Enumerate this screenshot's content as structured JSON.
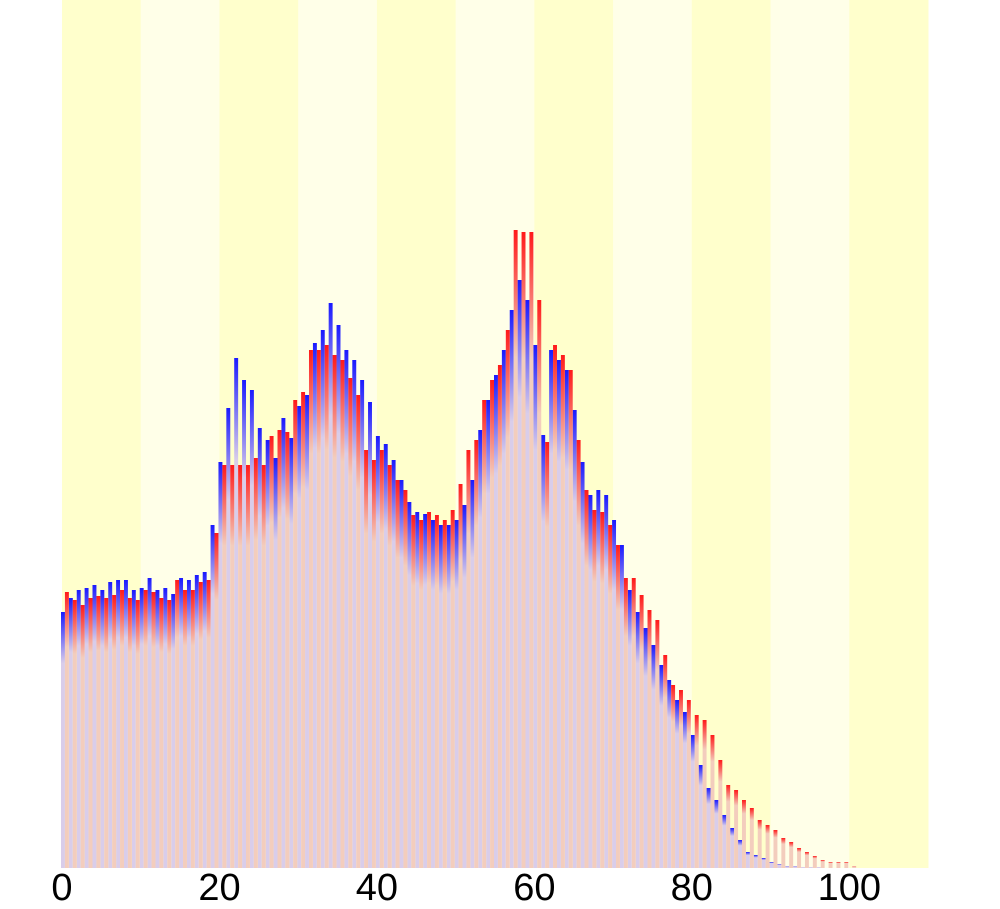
{
  "chart_data": {
    "type": "bar",
    "x": [
      0,
      1,
      2,
      3,
      4,
      5,
      6,
      7,
      8,
      9,
      10,
      11,
      12,
      13,
      14,
      15,
      16,
      17,
      18,
      19,
      20,
      21,
      22,
      23,
      24,
      25,
      26,
      27,
      28,
      29,
      30,
      31,
      32,
      33,
      34,
      35,
      36,
      37,
      38,
      39,
      40,
      41,
      42,
      43,
      44,
      45,
      46,
      47,
      48,
      49,
      50,
      51,
      52,
      53,
      54,
      55,
      56,
      57,
      58,
      59,
      60,
      61,
      62,
      63,
      64,
      65,
      66,
      67,
      68,
      69,
      70,
      71,
      72,
      73,
      74,
      75,
      76,
      77,
      78,
      79,
      80,
      81,
      82,
      83,
      84,
      85,
      86,
      87,
      88,
      89,
      90,
      91,
      92,
      93,
      94,
      95,
      96,
      97,
      98,
      99,
      100
    ],
    "series": [
      {
        "color": "#1a1aff",
        "values": [
          256,
          270,
          278,
          280,
          283,
          278,
          286,
          288,
          288,
          278,
          280,
          290,
          278,
          280,
          274,
          290,
          288,
          293,
          296,
          343,
          406,
          460,
          510,
          488,
          478,
          440,
          428,
          410,
          450,
          430,
          462,
          473,
          525,
          538,
          565,
          543,
          518,
          508,
          488,
          466,
          432,
          424,
          408,
          388,
          366,
          356,
          354,
          348,
          343,
          343,
          348,
          363,
          388,
          438,
          468,
          493,
          518,
          558,
          588,
          568,
          523,
          433,
          518,
          508,
          498,
          458,
          406,
          373,
          378,
          373,
          348,
          323,
          278,
          256,
          240,
          223,
          203,
          188,
          168,
          156,
          133,
          103,
          80,
          68,
          53,
          40,
          28,
          16,
          13,
          10,
          6,
          4,
          2,
          2,
          1,
          1,
          1,
          0,
          0,
          0,
          0
        ]
      },
      {
        "color": "#ff1a1a",
        "values": [
          276,
          268,
          263,
          270,
          272,
          270,
          273,
          278,
          270,
          268,
          278,
          276,
          270,
          268,
          288,
          278,
          278,
          286,
          288,
          335,
          403,
          403,
          403,
          403,
          410,
          403,
          432,
          438,
          436,
          468,
          476,
          518,
          518,
          523,
          513,
          508,
          490,
          473,
          418,
          408,
          418,
          403,
          388,
          378,
          353,
          348,
          356,
          353,
          348,
          358,
          384,
          418,
          428,
          468,
          488,
          503,
          538,
          638,
          636,
          636,
          568,
          426,
          523,
          513,
          498,
          428,
          378,
          358,
          356,
          343,
          323,
          290,
          290,
          273,
          258,
          248,
          213,
          183,
          178,
          168,
          153,
          148,
          133,
          108,
          83,
          78,
          68,
          60,
          48,
          43,
          38,
          30,
          26,
          20,
          16,
          12,
          8,
          6,
          6,
          6,
          2
        ]
      }
    ],
    "xlim": [
      0,
      110
    ],
    "xticks": [
      0,
      20,
      40,
      60,
      80,
      100
    ],
    "ylim": [
      0,
      868
    ],
    "band_colors": [
      "#ffffcc",
      "#ffffe8"
    ]
  }
}
